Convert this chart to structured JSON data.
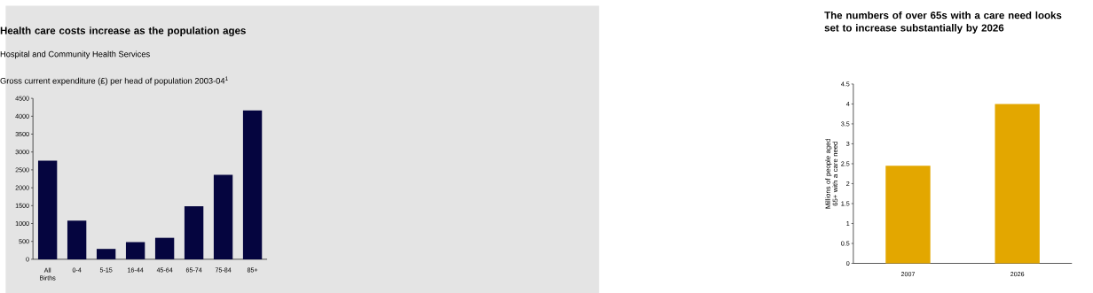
{
  "chart_data": [
    {
      "type": "bar",
      "title": "Health care costs increase as the population ages",
      "subtitle": "Hospital and Community Health Services",
      "ylabel": "Gross current expenditure (£) per head of population 2003-04$^{1}$",
      "categories": [
        "All Births",
        "0-4",
        "5-15",
        "16-44",
        "45-64",
        "65-74",
        "75-84",
        "85+"
      ],
      "values": [
        2760,
        1080,
        290,
        480,
        600,
        1480,
        2360,
        4160
      ],
      "color": "#05053f",
      "ylim": [
        0,
        4500
      ],
      "yticks": [
        0,
        500,
        1000,
        1500,
        2000,
        2500,
        3000,
        3500,
        4000,
        4500
      ]
    },
    {
      "type": "bar",
      "title": "The numbers of over 65s with a care need looks set to increase substantially by 2026",
      "ylabel": "Millions of people aged 65+ with a care need",
      "categories": [
        "2007",
        "2026"
      ],
      "values": [
        2.45,
        4.0
      ],
      "color": "#e3a700",
      "ylim": [
        0,
        4.5
      ],
      "yticks": [
        0,
        0.5,
        1,
        1.5,
        2,
        2.5,
        3,
        3.5,
        4,
        4.5
      ]
    }
  ]
}
